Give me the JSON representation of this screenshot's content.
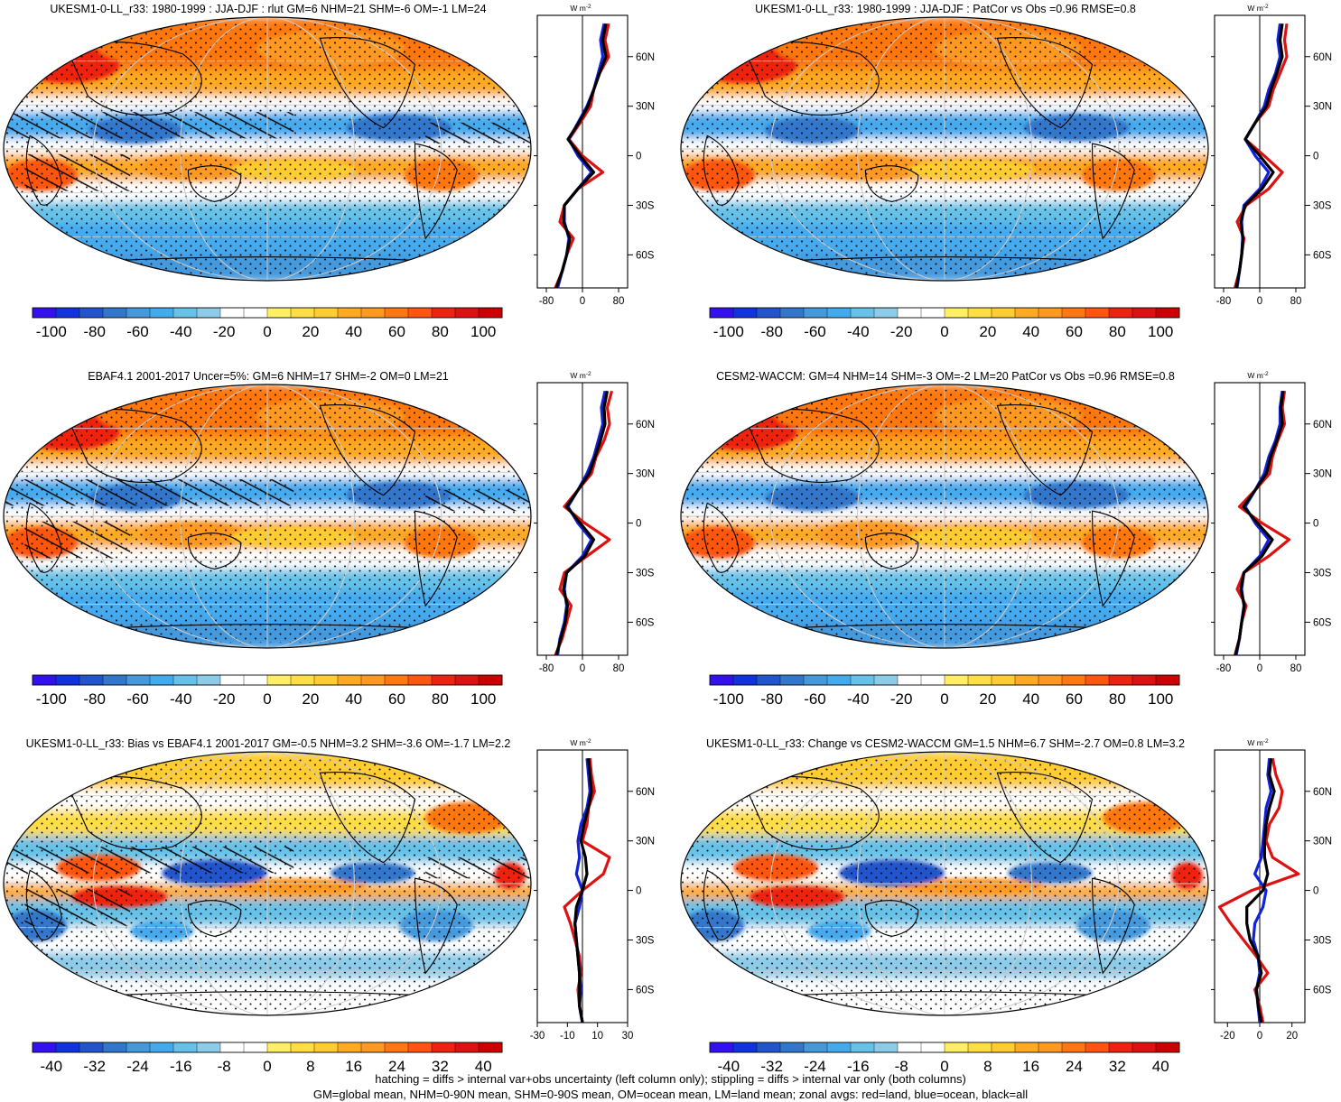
{
  "palette": {
    "colors": [
      "#3311ee",
      "#1133dd",
      "#2255cc",
      "#3377cc",
      "#4499dd",
      "#44aaee",
      "#66c2e8",
      "#8ccce8",
      "#ffffff",
      "#ffffff",
      "#ffee66",
      "#ffdd44",
      "#ffcc33",
      "#ffaa22",
      "#ff9922",
      "#ff7711",
      "#ff5511",
      "#ee2211",
      "#dd1111",
      "#cc0000"
    ],
    "land": "#dd1111",
    "ocean": "#1122dd",
    "all": "#000000"
  },
  "panels": [
    {
      "title": "UKESM1-0-LL_r33: 1980-1999 : JJA-DJF : rlut GM=6 NHM=21 SHM=-6 OM=-1 LM=24",
      "unit": "W m",
      "unit_sup": "-2",
      "colorbar_labels": [
        "-100",
        "-80",
        "-60",
        "-40",
        "-20",
        "0",
        "20",
        "40",
        "60",
        "80",
        "100"
      ],
      "lat_labels": [
        "60N",
        "30N",
        "0",
        "30S",
        "60S"
      ],
      "x_ticks": [
        "-80",
        "0",
        "80"
      ],
      "x_range": [
        -100,
        100
      ],
      "hatching": true,
      "pattern": "clim",
      "chart_data": {
        "type": "line",
        "ylabel_ticks": [
          "60N",
          "30N",
          "0",
          "30S",
          "60S"
        ],
        "series": [
          {
            "name": "red=land",
            "lat": [
              80,
              70,
              60,
              50,
              40,
              30,
              20,
              10,
              0,
              -10,
              -20,
              -30,
              -40,
              -50,
              -60,
              -70,
              -80
            ],
            "values": [
              58,
              50,
              58,
              38,
              25,
              18,
              -5,
              -30,
              0,
              45,
              -10,
              -40,
              -50,
              -20,
              -35,
              -45,
              -60
            ]
          },
          {
            "name": "blue=ocean",
            "lat": [
              80,
              70,
              60,
              50,
              40,
              30,
              20,
              10,
              0,
              -10,
              -20,
              -30,
              -40,
              -50,
              -60,
              -70,
              -80
            ],
            "values": [
              48,
              40,
              45,
              35,
              25,
              10,
              -10,
              -30,
              -10,
              20,
              -10,
              -40,
              -40,
              -30,
              -35,
              -45,
              -55
            ]
          },
          {
            "name": "black=all",
            "lat": [
              80,
              70,
              60,
              50,
              40,
              30,
              20,
              10,
              0,
              -10,
              -20,
              -30,
              -40,
              -50,
              -60,
              -70,
              -80
            ],
            "values": [
              52,
              45,
              52,
              38,
              25,
              12,
              -8,
              -32,
              -5,
              25,
              -10,
              -40,
              -42,
              -28,
              -35,
              -45,
              -58
            ]
          }
        ]
      }
    },
    {
      "title": "UKESM1-0-LL_r33: 1980-1999 : JJA-DJF : PatCor vs Obs =0.96 RMSE=0.8",
      "unit": "W m",
      "unit_sup": "-2",
      "colorbar_labels": [
        "-100",
        "-80",
        "-60",
        "-40",
        "-20",
        "0",
        "20",
        "40",
        "60",
        "80",
        "100"
      ],
      "lat_labels": [
        "60N",
        "30N",
        "0",
        "30S",
        "60S"
      ],
      "x_ticks": [
        "-80",
        "0",
        "80"
      ],
      "x_range": [
        -100,
        100
      ],
      "hatching": false,
      "pattern": "clim",
      "chart_data": {
        "type": "line",
        "ylabel_ticks": [
          "60N",
          "30N",
          "0",
          "30S",
          "60S"
        ],
        "series": [
          {
            "name": "red=land",
            "lat": [
              80,
              70,
              60,
              50,
              40,
              30,
              20,
              10,
              0,
              -10,
              -20,
              -30,
              -40,
              -50,
              -60,
              -70,
              -80
            ],
            "values": [
              60,
              55,
              60,
              45,
              30,
              20,
              -10,
              -32,
              10,
              50,
              20,
              -30,
              -50,
              -35,
              -40,
              -45,
              -55
            ]
          },
          {
            "name": "blue=ocean",
            "lat": [
              80,
              70,
              60,
              50,
              40,
              30,
              20,
              10,
              0,
              -10,
              -20,
              -30,
              -40,
              -50,
              -60,
              -70,
              -80
            ],
            "values": [
              45,
              40,
              45,
              35,
              20,
              10,
              -10,
              -32,
              -10,
              20,
              0,
              -35,
              -40,
              -38,
              -40,
              -45,
              -50
            ]
          },
          {
            "name": "black=all",
            "lat": [
              80,
              70,
              60,
              50,
              40,
              30,
              20,
              10,
              0,
              -10,
              -20,
              -30,
              -40,
              -50,
              -60,
              -70,
              -80
            ],
            "values": [
              50,
              45,
              50,
              38,
              25,
              15,
              -10,
              -32,
              0,
              30,
              5,
              -32,
              -42,
              -37,
              -40,
              -45,
              -52
            ]
          }
        ]
      }
    },
    {
      "title": "EBAF4.1 2001-2017 Uncer=5%: GM=6 NHM=17 SHM=-2 OM=0 LM=21",
      "unit": "W m",
      "unit_sup": "-2",
      "colorbar_labels": [
        "-100",
        "-80",
        "-60",
        "-40",
        "-20",
        "0",
        "20",
        "40",
        "60",
        "80",
        "100"
      ],
      "lat_labels": [
        "60N",
        "30N",
        "0",
        "30S",
        "60S"
      ],
      "x_ticks": [
        "-80",
        "0",
        "80"
      ],
      "x_range": [
        -100,
        100
      ],
      "hatching": true,
      "pattern": "clim",
      "chart_data": {
        "type": "line",
        "ylabel_ticks": [
          "60N",
          "30N",
          "0",
          "30S",
          "60S"
        ],
        "series": [
          {
            "name": "red=land",
            "lat": [
              80,
              70,
              60,
              50,
              40,
              30,
              20,
              10,
              0,
              -10,
              -20,
              -30,
              -40,
              -50,
              -60,
              -70,
              -80
            ],
            "values": [
              65,
              55,
              60,
              48,
              30,
              20,
              -10,
              -40,
              5,
              60,
              10,
              -40,
              -50,
              -25,
              -35,
              -45,
              -60
            ]
          },
          {
            "name": "blue=ocean",
            "lat": [
              80,
              70,
              60,
              50,
              40,
              30,
              20,
              10,
              0,
              -10,
              -20,
              -30,
              -40,
              -50,
              -60,
              -70,
              -80
            ],
            "values": [
              50,
              42,
              45,
              35,
              25,
              10,
              -10,
              -32,
              -10,
              20,
              0,
              -35,
              -40,
              -35,
              -40,
              -50,
              -55
            ]
          },
          {
            "name": "black=all",
            "lat": [
              80,
              70,
              60,
              50,
              40,
              30,
              20,
              10,
              0,
              -10,
              -20,
              -30,
              -40,
              -50,
              -60,
              -70,
              -80
            ],
            "values": [
              55,
              48,
              50,
              40,
              28,
              15,
              -10,
              -35,
              -5,
              25,
              5,
              -35,
              -42,
              -33,
              -38,
              -48,
              -58
            ]
          }
        ]
      }
    },
    {
      "title": "CESM2-WACCM: GM=4 NHM=14 SHM=-3 OM=-2 LM=20 PatCor vs Obs =0.96 RMSE=0.8",
      "unit": "W m",
      "unit_sup": "-2",
      "colorbar_labels": [
        "-100",
        "-80",
        "-60",
        "-40",
        "-20",
        "0",
        "20",
        "40",
        "60",
        "80",
        "100"
      ],
      "lat_labels": [
        "60N",
        "30N",
        "0",
        "30S",
        "60S"
      ],
      "x_ticks": [
        "-80",
        "0",
        "80"
      ],
      "x_range": [
        -100,
        100
      ],
      "hatching": false,
      "pattern": "clim",
      "chart_data": {
        "type": "line",
        "ylabel_ticks": [
          "60N",
          "30N",
          "0",
          "30S",
          "60S"
        ],
        "series": [
          {
            "name": "red=land",
            "lat": [
              80,
              70,
              60,
              50,
              40,
              30,
              20,
              10,
              0,
              -10,
              -20,
              -30,
              -40,
              -50,
              -60,
              -70,
              -80
            ],
            "values": [
              55,
              50,
              55,
              40,
              28,
              22,
              -10,
              -45,
              5,
              65,
              20,
              -35,
              -50,
              -30,
              -40,
              -45,
              -55
            ]
          },
          {
            "name": "blue=ocean",
            "lat": [
              80,
              70,
              60,
              50,
              40,
              30,
              20,
              10,
              0,
              -10,
              -20,
              -30,
              -40,
              -50,
              -60,
              -70,
              -80
            ],
            "values": [
              50,
              45,
              45,
              35,
              20,
              10,
              -10,
              -32,
              -10,
              20,
              0,
              -35,
              -40,
              -35,
              -40,
              -45,
              -52
            ]
          },
          {
            "name": "black=all",
            "lat": [
              80,
              70,
              60,
              50,
              40,
              30,
              20,
              10,
              0,
              -10,
              -20,
              -30,
              -40,
              -50,
              -60,
              -70,
              -80
            ],
            "values": [
              52,
              47,
              50,
              38,
              24,
              15,
              -10,
              -36,
              -5,
              28,
              5,
              -35,
              -42,
              -34,
              -40,
              -45,
              -54
            ]
          }
        ]
      }
    },
    {
      "title": "UKESM1-0-LL_r33: Bias vs EBAF4.1 2001-2017 GM=-0.5 NHM=3.2 SHM=-3.6 OM=-1.7 LM=2.2",
      "unit": "W m",
      "unit_sup": "-2",
      "colorbar_labels": [
        "-40",
        "-32",
        "-24",
        "-16",
        "-8",
        "0",
        "8",
        "16",
        "24",
        "32",
        "40"
      ],
      "lat_labels": [
        "60N",
        "30N",
        "0",
        "30S",
        "60S"
      ],
      "x_ticks": [
        "-30",
        "-10",
        "10",
        "30"
      ],
      "x_range": [
        -30,
        30
      ],
      "hatching": true,
      "pattern": "diff",
      "chart_data": {
        "type": "line",
        "ylabel_ticks": [
          "60N",
          "30N",
          "0",
          "30S",
          "60S"
        ],
        "series": [
          {
            "name": "red=land",
            "lat": [
              80,
              70,
              60,
              50,
              40,
              30,
              20,
              10,
              0,
              -10,
              -20,
              -30,
              -40,
              -50,
              -60,
              -70,
              -80
            ],
            "values": [
              5,
              6,
              8,
              4,
              3,
              0,
              18,
              14,
              0,
              -12,
              -8,
              -5,
              -2,
              -1,
              -3,
              -2,
              0
            ]
          },
          {
            "name": "blue=ocean",
            "lat": [
              80,
              70,
              60,
              50,
              40,
              30,
              20,
              10,
              0,
              -10,
              -20,
              -30,
              -40,
              -50,
              -60,
              -70,
              -80
            ],
            "values": [
              3,
              4,
              5,
              3,
              -1,
              -3,
              -2,
              -4,
              0,
              -2,
              -5,
              -4,
              -3,
              -2,
              -1,
              -2,
              0
            ]
          },
          {
            "name": "black=all",
            "lat": [
              80,
              70,
              60,
              50,
              40,
              30,
              20,
              10,
              0,
              -10,
              -20,
              -30,
              -40,
              -50,
              -60,
              -70,
              -80
            ],
            "values": [
              4,
              5,
              6,
              4,
              1,
              -1,
              2,
              3,
              0,
              -4,
              -5,
              -4,
              -3,
              -2,
              -2,
              -2,
              0
            ]
          }
        ]
      }
    },
    {
      "title": "UKESM1-0-LL_r33: Change vs CESM2-WACCM GM=1.5 NHM=6.7 SHM=-2.7 OM=0.8 LM=3.2",
      "unit": "W m",
      "unit_sup": "-2",
      "colorbar_labels": [
        "-40",
        "-32",
        "-24",
        "-16",
        "-8",
        "0",
        "8",
        "16",
        "24",
        "32",
        "40"
      ],
      "lat_labels": [
        "60N",
        "30N",
        "0",
        "30S",
        "60S"
      ],
      "x_ticks": [
        "-20",
        "0",
        "20"
      ],
      "x_range": [
        -28,
        28
      ],
      "hatching": false,
      "pattern": "diff",
      "chart_data": {
        "type": "line",
        "ylabel_ticks": [
          "60N",
          "30N",
          "0",
          "30S",
          "60S"
        ],
        "series": [
          {
            "name": "red=land",
            "lat": [
              80,
              70,
              60,
              50,
              40,
              30,
              20,
              10,
              0,
              -10,
              -20,
              -30,
              -40,
              -50,
              -60,
              -70,
              -80
            ],
            "values": [
              8,
              10,
              14,
              12,
              6,
              4,
              8,
              24,
              -5,
              -25,
              -18,
              -10,
              -2,
              5,
              -3,
              0,
              2
            ]
          },
          {
            "name": "blue=ocean",
            "lat": [
              80,
              70,
              60,
              50,
              40,
              30,
              20,
              10,
              0,
              -10,
              -20,
              -30,
              -40,
              -50,
              -60,
              -70,
              -80
            ],
            "values": [
              6,
              5,
              7,
              4,
              3,
              2,
              1,
              -3,
              4,
              2,
              -3,
              -4,
              -1,
              0,
              -2,
              -1,
              0
            ]
          },
          {
            "name": "black=all",
            "lat": [
              80,
              70,
              60,
              50,
              40,
              30,
              20,
              10,
              0,
              -10,
              -20,
              -30,
              -40,
              -50,
              -60,
              -70,
              -80
            ],
            "values": [
              7,
              6,
              9,
              6,
              4,
              3,
              3,
              5,
              2,
              -8,
              -8,
              -6,
              -1,
              1,
              -2,
              -1,
              1
            ]
          }
        ]
      }
    }
  ],
  "footer": {
    "line1": "hatching = diffs > internal var+obs uncertainty (left column only); stippling = diffs > internal var only (both columns)",
    "line2": "GM=global mean, NHM=0-90N mean, SHM=0-90S mean, OM=ocean mean, LM=land mean; zonal avgs: red=land, blue=ocean, black=all"
  }
}
